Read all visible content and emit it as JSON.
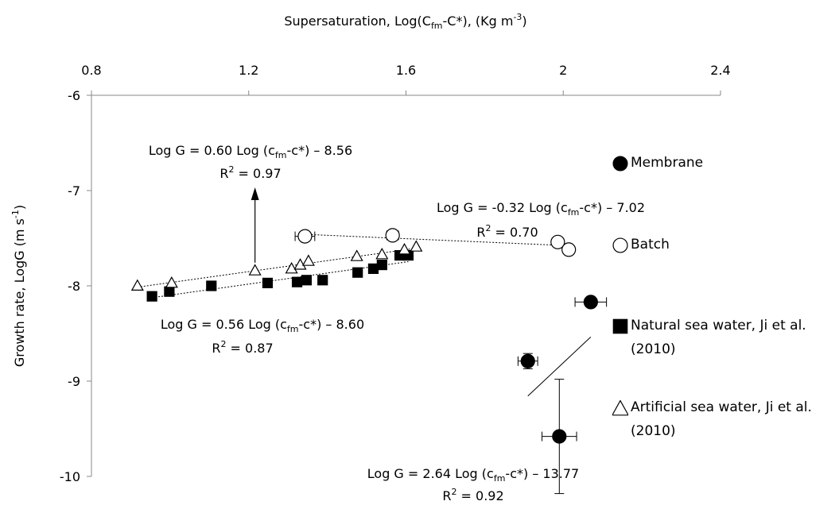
{
  "chart_data": {
    "type": "scatter",
    "x_label": [
      "Supersaturation, Log(C",
      "fm",
      "-C*), (Kg m",
      "-3",
      ")"
    ],
    "y_label": [
      "Growth rate, LogG (m s",
      "-1",
      ")"
    ],
    "xlim": [
      0.8,
      2.4
    ],
    "xticks": [
      0.8,
      1.2,
      1.6,
      2,
      2.4
    ],
    "ylim": [
      -10,
      -6
    ],
    "yticks": [
      -10,
      -9,
      -8,
      -7,
      -6
    ],
    "series": [
      {
        "name": "Membrane",
        "marker": "circle",
        "filled": true,
        "color": "#000000",
        "trend": "solid",
        "x": [
          1.99,
          1.91,
          2.07
        ],
        "values": [
          -9.58,
          -8.79,
          -8.17
        ],
        "error_x": [
          0.044,
          0.025,
          0.04
        ],
        "error_y": [
          0.6,
          0.08,
          0.04
        ]
      },
      {
        "name": "Batch",
        "marker": "circle",
        "filled": false,
        "color": "#000000",
        "trend": "dotted",
        "x": [
          1.343,
          1.566,
          1.986,
          2.014
        ],
        "values": [
          -7.48,
          -7.47,
          -7.54,
          -7.62
        ],
        "error_x": [
          0.025,
          0.015,
          null,
          null
        ],
        "error_y": [
          0.05,
          0.05,
          null,
          null
        ]
      },
      {
        "name": "Natural sea water, Ji et al. (2010)",
        "marker": "square",
        "filled": true,
        "color": "#000000",
        "trend": "dotted",
        "x": [
          0.954,
          0.998,
          1.105,
          1.248,
          1.323,
          1.347,
          1.388,
          1.477,
          1.517,
          1.539,
          1.584,
          1.606
        ],
        "values": [
          -8.11,
          -8.06,
          -8.0,
          -7.97,
          -7.96,
          -7.94,
          -7.94,
          -7.86,
          -7.82,
          -7.78,
          -7.68,
          -7.68
        ]
      },
      {
        "name": "Artificial sea water, Ji et al. (2010)",
        "marker": "triangle",
        "filled": false,
        "color": "#000000",
        "trend": "dotted",
        "x": [
          0.917,
          1.004,
          1.216,
          1.309,
          1.331,
          1.352,
          1.475,
          1.539,
          1.596,
          1.626
        ],
        "values": [
          -8.0,
          -7.97,
          -7.84,
          -7.82,
          -7.78,
          -7.74,
          -7.69,
          -7.67,
          -7.62,
          -7.59
        ]
      }
    ],
    "annotations": [
      {
        "line1": [
          "Log G = 0.60 Log (c",
          "fm",
          "-c*) – 8.56"
        ],
        "line2": [
          "R",
          "2",
          " = 0.97"
        ]
      },
      {
        "line1": [
          "Log G = -0.32 Log (c",
          "fm",
          "-c*) – 7.02"
        ],
        "line2": [
          "R",
          "2",
          " = 0.70"
        ]
      },
      {
        "line1": [
          "Log G = 0.56 Log (c",
          "fm",
          "-c*) – 8.60"
        ],
        "line2": [
          "R",
          "2",
          " = 0.87"
        ]
      },
      {
        "line1": [
          "Log G = 2.64 Log (c",
          "fm",
          "-c*) – 13.77"
        ],
        "line2": [
          "R",
          "2",
          " = 0.92"
        ]
      }
    ]
  }
}
